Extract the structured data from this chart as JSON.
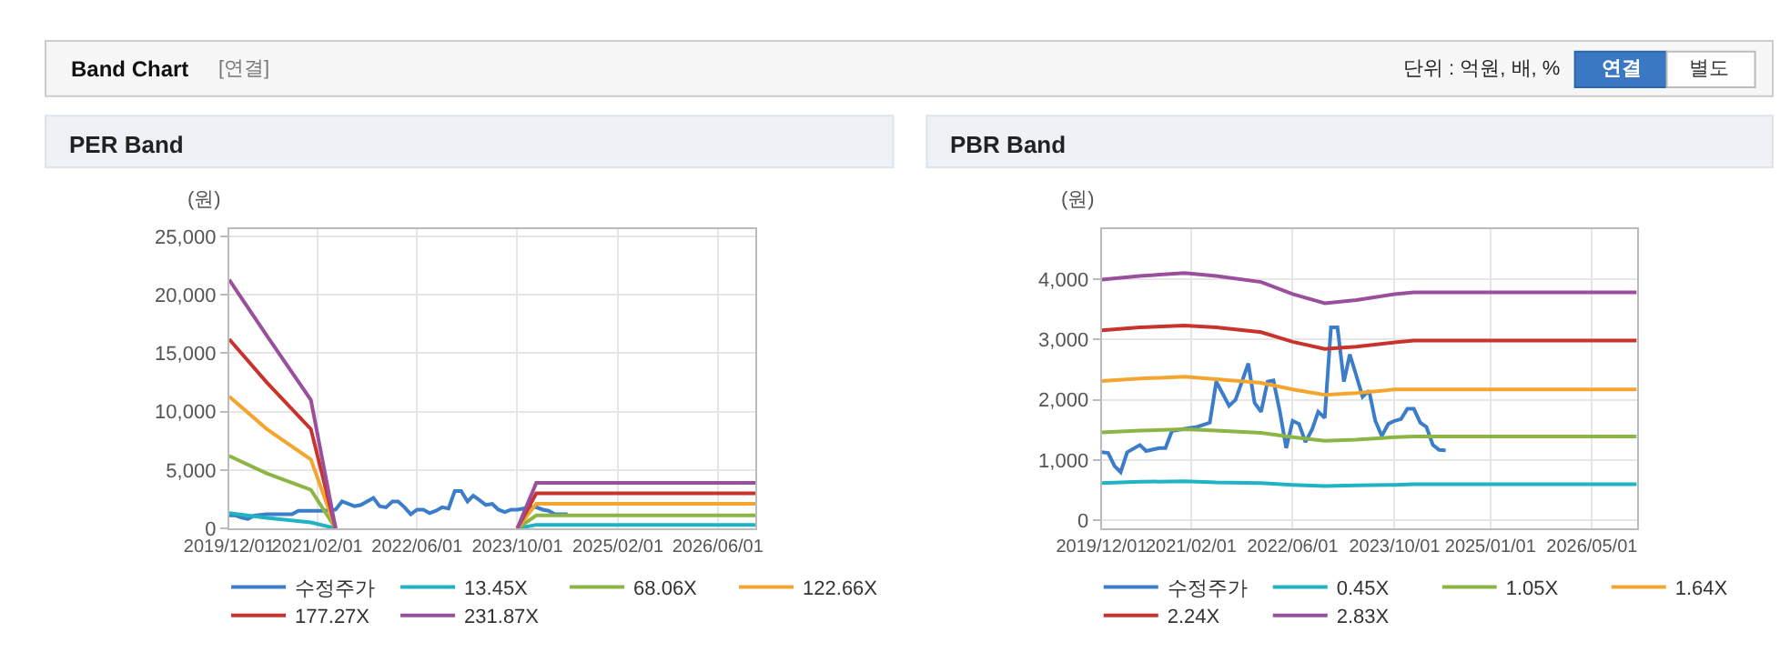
{
  "chart_data": [
    {
      "type": "line",
      "title": "PER Band",
      "ylabel": "(원)",
      "annotations": [
        "Band Chart",
        "[연결]",
        "단위 : 억원, 배, %",
        "연결",
        "별도"
      ],
      "xlim": [
        "2019-12-01",
        "2026-12-01"
      ],
      "xticks": [
        {
          "value": "2019-12-01",
          "label": "2019/12/01"
        },
        {
          "value": "2021-02-01",
          "label": "2021/02/01"
        },
        {
          "value": "2022-06-01",
          "label": "2022/06/01"
        },
        {
          "value": "2023-10-01",
          "label": "2023/10/01"
        },
        {
          "value": "2025-02-01",
          "label": "2025/02/01"
        },
        {
          "value": "2026-06-01",
          "label": "2026/06/01"
        }
      ],
      "ylim": [
        0,
        25600
      ],
      "yticks": [
        {
          "value": 0,
          "label": "0"
        },
        {
          "value": 5000,
          "label": "5,000"
        },
        {
          "value": 10000,
          "label": "10,000"
        },
        {
          "value": 15000,
          "label": "15,000"
        },
        {
          "value": 20000,
          "label": "20,000"
        },
        {
          "value": 25000,
          "label": "25,000"
        }
      ],
      "grid": true,
      "legend": "bottom",
      "marker": "none",
      "x": [
        "2019-12",
        "2020-06",
        "2021-01",
        "2021-05",
        "2022-06",
        "2023-10",
        "2024-01",
        "2026-12"
      ],
      "series": [
        {
          "name": "수정주가",
          "color": "#3b7dc9",
          "x": [
            "2019-12",
            "2020-01",
            "2020-02",
            "2020-03",
            "2020-04",
            "2020-06",
            "2020-07",
            "2020-09",
            "2020-10",
            "2020-11",
            "2021-01",
            "2021-03",
            "2021-05",
            "2021-06",
            "2021-08",
            "2021-09",
            "2021-11",
            "2021-12",
            "2022-01",
            "2022-02",
            "2022-03",
            "2022-04",
            "2022-05",
            "2022-06",
            "2022-07",
            "2022-08",
            "2022-09",
            "2022-10",
            "2022-11",
            "2022-12",
            "2023-01",
            "2023-02",
            "2023-03",
            "2023-04",
            "2023-05",
            "2023-06",
            "2023-07",
            "2023-08",
            "2023-09",
            "2023-10",
            "2023-11",
            "2023-12",
            "2024-01",
            "2024-02",
            "2024-03",
            "2024-04",
            "2024-05",
            "2024-06"
          ],
          "values": [
            1100,
            1100,
            900,
            800,
            1100,
            1200,
            1200,
            1200,
            1200,
            1500,
            1500,
            1500,
            1600,
            2300,
            1900,
            2000,
            2600,
            1900,
            1800,
            2300,
            2300,
            1800,
            1200,
            1600,
            1600,
            1300,
            1500,
            1800,
            1700,
            3200,
            3200,
            2300,
            2800,
            2400,
            2000,
            2100,
            1600,
            1400,
            1600,
            1600,
            1700,
            1800,
            1800,
            1600,
            1500,
            1200,
            1200,
            1200
          ]
        },
        {
          "name": "13.45X",
          "color": "#1fb3c3",
          "values": [
            1300,
            900,
            500,
            0,
            null,
            0,
            300,
            300
          ]
        },
        {
          "name": "68.06X",
          "color": "#8db545",
          "values": [
            6200,
            4700,
            3300,
            0,
            null,
            0,
            1100,
            1100
          ]
        },
        {
          "name": "122.66X",
          "color": "#f4a530",
          "values": [
            11300,
            8500,
            5900,
            0,
            null,
            0,
            2100,
            2100
          ]
        },
        {
          "name": "177.27X",
          "color": "#c9332d",
          "values": [
            16200,
            12500,
            8500,
            0,
            null,
            0,
            3000,
            3000
          ]
        },
        {
          "name": "231.87X",
          "color": "#9a4f9c",
          "values": [
            21300,
            16500,
            11000,
            0,
            null,
            0,
            3900,
            3900
          ]
        }
      ]
    },
    {
      "type": "line",
      "title": "PBR Band",
      "ylabel": "(원)",
      "xlim": [
        "2019-12-01",
        "2026-12-01"
      ],
      "xticks": [
        {
          "value": "2019-12-01",
          "label": "2019/12/01"
        },
        {
          "value": "2021-02-01",
          "label": "2021/02/01"
        },
        {
          "value": "2022-06-01",
          "label": "2022/06/01"
        },
        {
          "value": "2023-10-01",
          "label": "2023/10/01"
        },
        {
          "value": "2025-01-01",
          "label": "2025/01/01"
        },
        {
          "value": "2026-05-01",
          "label": "2026/05/01"
        }
      ],
      "ylim": [
        -130,
        4820
      ],
      "yticks": [
        {
          "value": 0,
          "label": "0"
        },
        {
          "value": 1000,
          "label": "1,000"
        },
        {
          "value": 2000,
          "label": "2,000"
        },
        {
          "value": 3000,
          "label": "3,000"
        },
        {
          "value": 4000,
          "label": "4,000"
        }
      ],
      "grid": true,
      "legend": "bottom",
      "marker": "none",
      "x": [
        "2019-12",
        "2020-06",
        "2021-01",
        "2021-06",
        "2022-01",
        "2022-06",
        "2022-11",
        "2023-04",
        "2023-10",
        "2024-01",
        "2026-12"
      ],
      "series": [
        {
          "name": "수정주가",
          "color": "#3b7dc9",
          "x": [
            "2019-12",
            "2020-01",
            "2020-02",
            "2020-03",
            "2020-04",
            "2020-06",
            "2020-07",
            "2020-09",
            "2020-10",
            "2020-11",
            "2021-01",
            "2021-03",
            "2021-05",
            "2021-06",
            "2021-08",
            "2021-09",
            "2021-11",
            "2021-12",
            "2022-01",
            "2022-02",
            "2022-03",
            "2022-04",
            "2022-05",
            "2022-06",
            "2022-07",
            "2022-08",
            "2022-09",
            "2022-10",
            "2022-11",
            "2022-12",
            "2023-01",
            "2023-02",
            "2023-03",
            "2023-04",
            "2023-05",
            "2023-06",
            "2023-07",
            "2023-08",
            "2023-09",
            "2023-10",
            "2023-11",
            "2023-12",
            "2024-01",
            "2024-02",
            "2024-03",
            "2024-04",
            "2024-05",
            "2024-06"
          ],
          "values": [
            1130,
            1120,
            900,
            800,
            1130,
            1250,
            1150,
            1200,
            1200,
            1480,
            1520,
            1550,
            1620,
            2300,
            1900,
            2000,
            2600,
            1950,
            1800,
            2300,
            2320,
            1800,
            1200,
            1650,
            1600,
            1300,
            1500,
            1800,
            1700,
            3200,
            3200,
            2300,
            2750,
            2400,
            2050,
            2150,
            1650,
            1400,
            1600,
            1650,
            1680,
            1850,
            1850,
            1620,
            1550,
            1250,
            1170,
            1160
          ]
        },
        {
          "name": "0.45X",
          "color": "#1fb3c3",
          "values": [
            620,
            640,
            650,
            630,
            620,
            590,
            570,
            580,
            590,
            600,
            600
          ]
        },
        {
          "name": "1.05X",
          "color": "#8db545",
          "values": [
            1460,
            1490,
            1510,
            1490,
            1450,
            1380,
            1320,
            1340,
            1380,
            1390,
            1390
          ]
        },
        {
          "name": "1.64X",
          "color": "#f4a530",
          "values": [
            2310,
            2350,
            2380,
            2340,
            2280,
            2170,
            2080,
            2110,
            2170,
            2170,
            2170
          ]
        },
        {
          "name": "2.24X",
          "color": "#c9332d",
          "values": [
            3150,
            3200,
            3230,
            3200,
            3120,
            2960,
            2840,
            2880,
            2950,
            2980,
            2980
          ]
        },
        {
          "name": "2.83X",
          "color": "#9a4f9c",
          "values": [
            3990,
            4050,
            4100,
            4050,
            3950,
            3750,
            3600,
            3650,
            3750,
            3780,
            3780
          ]
        }
      ]
    }
  ]
}
